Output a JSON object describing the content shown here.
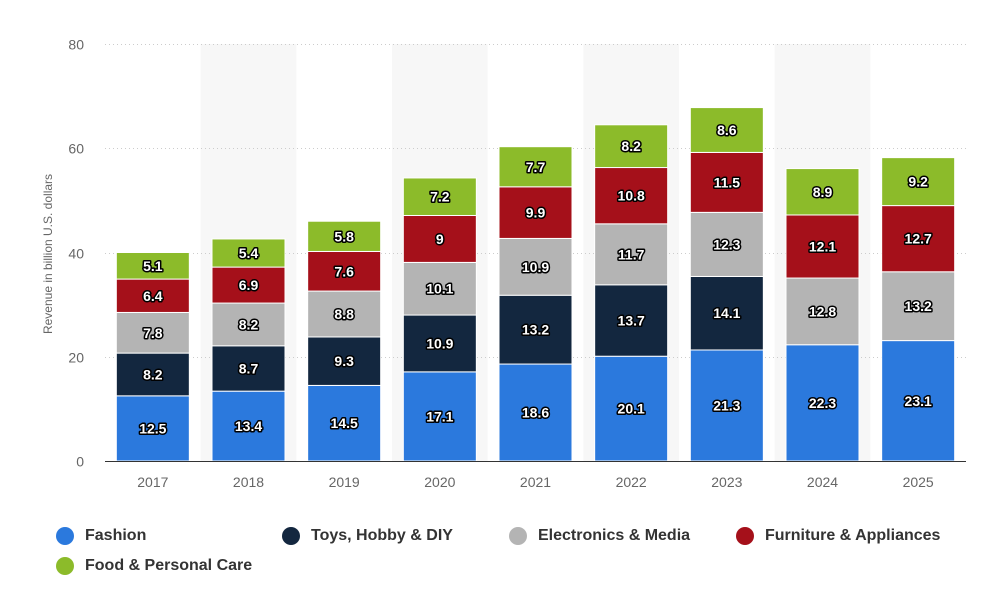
{
  "chart_data": {
    "type": "bar",
    "stacked": true,
    "ylabel": "Revenue in billion U.S. dollars",
    "ylim": [
      0,
      80
    ],
    "yticks": [
      0,
      20,
      40,
      60,
      80
    ],
    "grid": true,
    "legend_position": "bottom",
    "categories": [
      "2017",
      "2018",
      "2019",
      "2020",
      "2021",
      "2022",
      "2023",
      "2024",
      "2025"
    ],
    "series": [
      {
        "name": "Fashion",
        "color": "#2b79dd",
        "values": [
          12.5,
          13.4,
          14.5,
          17.1,
          18.6,
          20.1,
          21.3,
          22.3,
          23.1
        ]
      },
      {
        "name": "Toys, Hobby & DIY",
        "color": "#13273f",
        "values": [
          8.2,
          8.7,
          9.3,
          10.9,
          13.2,
          13.7,
          14.1,
          null,
          null
        ]
      },
      {
        "name": "Electronics & Media",
        "color": "#b4b4b4",
        "values": [
          7.8,
          8.2,
          8.8,
          10.1,
          10.9,
          11.7,
          12.3,
          12.8,
          13.2
        ]
      },
      {
        "name": "Furniture & Appliances",
        "color": "#a5101a",
        "values": [
          6.4,
          6.9,
          7.6,
          9,
          9.9,
          10.8,
          11.5,
          12.1,
          12.7
        ]
      },
      {
        "name": "Food & Personal Care",
        "color": "#8cbb2a",
        "values": [
          5.1,
          5.4,
          5.8,
          7.2,
          7.7,
          8.2,
          8.6,
          8.9,
          9.2
        ]
      }
    ]
  }
}
